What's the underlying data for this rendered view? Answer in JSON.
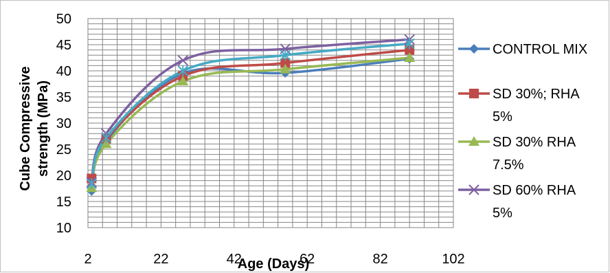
{
  "chart_data": {
    "type": "line",
    "title": "",
    "xlabel": "Age (Days)",
    "ylabel_lines": [
      "Cube Compressive",
      "strength (MPa)"
    ],
    "xlim": [
      2,
      102
    ],
    "ylim": [
      10,
      50
    ],
    "x_ticks": [
      "2",
      "22",
      "42",
      "62",
      "82",
      "102"
    ],
    "y_ticks": [
      "10",
      "15",
      "20",
      "25",
      "30",
      "35",
      "40",
      "45",
      "50"
    ],
    "grid": true,
    "legend_position": "right",
    "x": [
      3,
      7,
      28,
      56,
      90
    ],
    "series": [
      {
        "name": "CONTROL MIX",
        "legend_lines": [
          "CONTROL MIX"
        ],
        "color": "#4a7ebb",
        "marker": "diamond",
        "values": [
          17.0,
          26.5,
          39.5,
          39.6,
          42.3
        ]
      },
      {
        "name": "SD 30%; RHA 5%",
        "legend_lines": [
          "SD 30%; RHA",
          "5%"
        ],
        "color": "#be4b48",
        "marker": "square",
        "values": [
          19.4,
          27.0,
          39.0,
          41.5,
          44.0
        ]
      },
      {
        "name": "SD 30% RHA 7.5%",
        "legend_lines": [
          "SD 30% RHA",
          "7.5%"
        ],
        "color": "#98b954",
        "marker": "triangle",
        "values": [
          17.6,
          26.0,
          38.0,
          40.3,
          42.5
        ]
      },
      {
        "name": "SD 60% RHA 5%",
        "legend_lines": [
          "SD 60% RHA",
          "5%"
        ],
        "color": "#7d60a0",
        "marker": "x",
        "values": [
          18.7,
          28.0,
          42.0,
          44.2,
          46.0
        ]
      },
      {
        "name": "",
        "legend_lines": [],
        "color": "#46aac5",
        "marker": "star",
        "values": [
          18.4,
          27.2,
          40.0,
          43.0,
          45.2
        ]
      }
    ]
  }
}
